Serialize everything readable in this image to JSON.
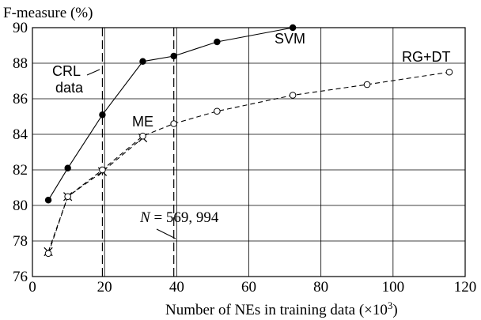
{
  "chart_data": {
    "type": "line",
    "ylabel": "F-measure (%)",
    "xlabel": "Number of NEs in training data (×10",
    "xlabel_sup": "3",
    "xlabel_tail": ")",
    "xlim": [
      0,
      120
    ],
    "ylim": [
      76,
      90
    ],
    "x_ticks": [
      0,
      20,
      40,
      60,
      80,
      100,
      120
    ],
    "y_ticks": [
      76,
      78,
      80,
      82,
      84,
      86,
      88,
      90
    ],
    "grid": true,
    "series": [
      {
        "name": "SVM",
        "marker": "filled-circle",
        "line": "solid",
        "x": [
          4.4,
          9.8,
          19.4,
          30.6,
          39.2,
          51.2,
          72.2
        ],
        "y": [
          80.3,
          82.1,
          85.1,
          88.1,
          88.4,
          89.2,
          90.0
        ]
      },
      {
        "name": "ME",
        "marker": "x",
        "line": "dashed",
        "x": [
          4.4,
          9.8,
          19.4,
          30.6
        ],
        "y": [
          77.4,
          80.5,
          81.9,
          83.8
        ]
      },
      {
        "name": "RG+DT",
        "marker": "open-circle",
        "line": "dashed",
        "x": [
          4.4,
          9.8,
          19.4,
          30.6,
          39.2,
          51.2,
          72.2,
          92.8,
          115.6
        ],
        "y": [
          77.3,
          80.5,
          82.0,
          83.9,
          84.6,
          85.3,
          86.2,
          86.8,
          87.5
        ]
      }
    ],
    "vlines": [
      {
        "x": 19.4,
        "style": "dashed"
      },
      {
        "x": 39.2,
        "style": "dashed"
      }
    ],
    "annotations": {
      "crl_line1": "CRL",
      "crl_line2": "data",
      "n_var": "N",
      "n_eq": " = 569, 994"
    }
  }
}
